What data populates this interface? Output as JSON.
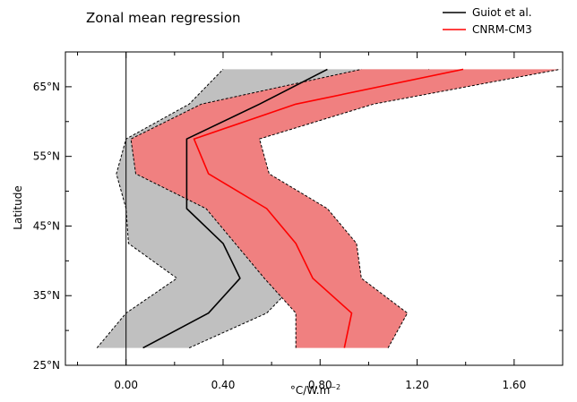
{
  "chart_data": {
    "type": "line",
    "title": "Zonal mean regression",
    "xlabel": "°C/W.m",
    "xlabel_sup": "−2",
    "ylabel": "Latitude",
    "xlim": [
      -0.25,
      1.8
    ],
    "ylim": [
      25,
      70
    ],
    "xticks": [
      {
        "value": 0.0,
        "label": "0.00"
      },
      {
        "value": 0.4,
        "label": "0.40"
      },
      {
        "value": 0.8,
        "label": "0.80"
      },
      {
        "value": 1.2,
        "label": "1.20"
      },
      {
        "value": 1.6,
        "label": "1.60"
      }
    ],
    "yticks": [
      {
        "value": 25,
        "label": "25°N"
      },
      {
        "value": 35,
        "label": "35°N"
      },
      {
        "value": 45,
        "label": "45°N"
      },
      {
        "value": 55,
        "label": "55°N"
      },
      {
        "value": 65,
        "label": "65°N"
      }
    ],
    "legend_position": "top-right",
    "series": [
      {
        "name": "Guiot et al.",
        "color": "#000000",
        "band_color": "#c0c0c0",
        "lat": [
          27.5,
          32.5,
          37.5,
          42.5,
          47.5,
          52.5,
          57.5,
          62.5,
          67.5
        ],
        "mean": [
          0.07,
          0.34,
          0.47,
          0.4,
          0.25,
          0.25,
          0.25,
          0.55,
          0.83
        ],
        "lower": [
          -0.12,
          0.0,
          0.21,
          0.01,
          0.0,
          -0.04,
          0.0,
          0.26,
          0.4
        ],
        "upper": [
          0.26,
          0.58,
          0.72,
          0.66,
          0.5,
          0.53,
          0.52,
          0.87,
          1.25
        ]
      },
      {
        "name": "CNRM-CM3",
        "color": "#ff0000",
        "band_color": "#f08080",
        "lat": [
          27.5,
          32.5,
          37.5,
          42.5,
          47.5,
          52.5,
          57.5,
          62.5,
          67.5
        ],
        "mean": [
          0.9,
          0.93,
          0.77,
          0.7,
          0.58,
          0.34,
          0.28,
          0.7,
          1.39
        ],
        "lower": [
          0.7,
          0.7,
          0.57,
          0.45,
          0.33,
          0.04,
          0.02,
          0.31,
          0.97
        ],
        "upper": [
          1.08,
          1.16,
          0.97,
          0.95,
          0.83,
          0.59,
          0.55,
          1.02,
          1.79
        ]
      }
    ]
  }
}
